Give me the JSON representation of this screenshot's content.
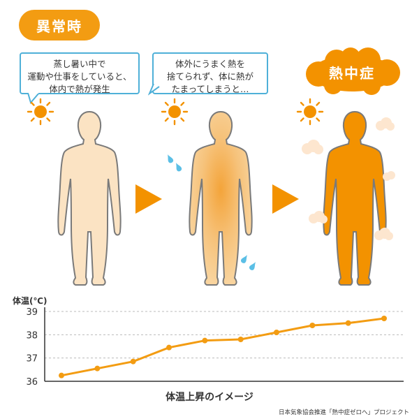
{
  "title_badge": "異常時",
  "steps": [
    {
      "bubble_lines": [
        "蒸し暑い中で",
        "運動や仕事をしていると、",
        "体内で熱が発生"
      ]
    },
    {
      "bubble_lines": [
        "体外にうまく熱を",
        "捨てられず、体に熱が",
        "たまってしまうと…"
      ]
    },
    {
      "label": "熱中症"
    }
  ],
  "colors": {
    "orange": "#f39c12",
    "bubble_border": "#4fb0d8",
    "body_light": "#fbe3c3",
    "body_mid": "#f6c27a",
    "body_hot": "#f39200",
    "sweat": "#5bbfe6",
    "steam": "#fde6cf",
    "grid": "#bbbbbb"
  },
  "icons": [
    "sun-icon",
    "arrow-right-icon",
    "sweat-drop-icon",
    "steam-cloud-icon",
    "human-figure-icon"
  ],
  "chart_data": {
    "type": "line",
    "ylabel": "体温(℃)",
    "ylim": [
      36,
      39
    ],
    "yticks": [
      36,
      37,
      38,
      39
    ],
    "grid": true,
    "x": [
      1,
      2,
      3,
      4,
      5,
      6,
      7,
      8,
      9,
      10
    ],
    "series": [
      {
        "values": [
          36.25,
          36.55,
          36.85,
          37.45,
          37.75,
          37.8,
          38.1,
          38.4,
          38.5,
          38.7
        ]
      }
    ],
    "caption": "体温上昇のイメージ"
  },
  "footer": "日本気象協会推進「熱中症ゼロへ」プロジェクト"
}
